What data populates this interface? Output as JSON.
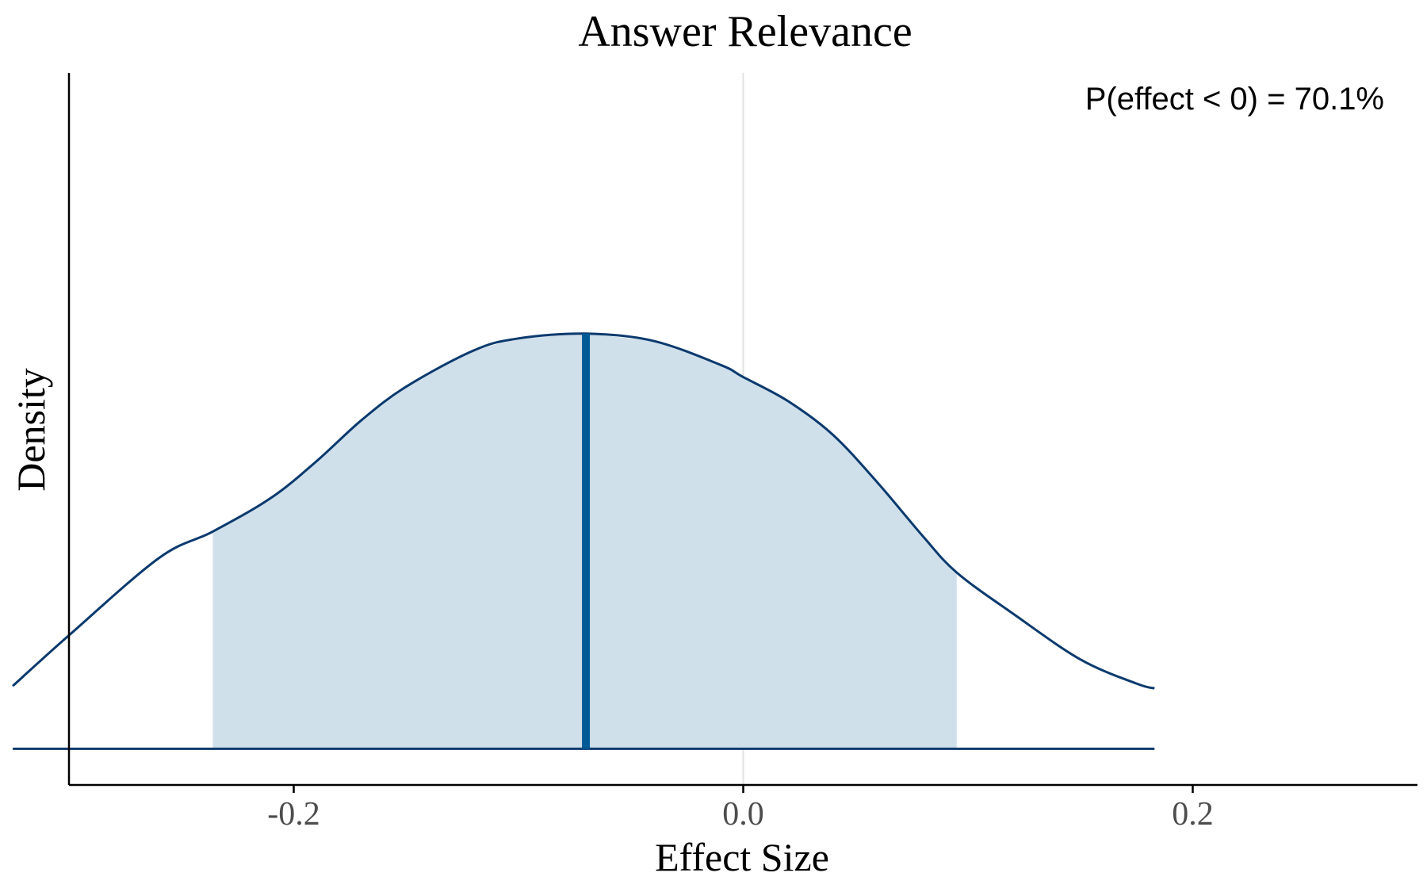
{
  "chart_data": {
    "type": "area",
    "title": "Answer Relevance",
    "xlabel": "Effect Size",
    "ylabel": "Density",
    "annotation": "P(effect < 0) = 70.1%",
    "xlim": [
      -0.3,
      0.3
    ],
    "ylim": [
      -0.15,
      2.8
    ],
    "grid": "vertical line at x = 0",
    "legend": "none",
    "x_ticks": [
      -0.2,
      0.0,
      0.2
    ],
    "x_tick_labels": [
      "-0.2",
      "0.0",
      "0.2"
    ],
    "median": -0.07,
    "interval": [
      -0.236,
      0.095
    ],
    "density": {
      "x": [
        -0.325,
        -0.3,
        -0.26,
        -0.236,
        -0.21,
        -0.19,
        -0.17,
        -0.15,
        -0.12,
        -0.1,
        -0.07,
        -0.04,
        -0.01,
        0.0,
        0.02,
        0.04,
        0.06,
        0.08,
        0.095,
        0.12,
        0.15,
        0.175,
        0.183
      ],
      "y": [
        0.26,
        0.47,
        0.79,
        0.9,
        1.04,
        1.19,
        1.36,
        1.5,
        1.65,
        1.7,
        1.72,
        1.69,
        1.59,
        1.54,
        1.44,
        1.3,
        1.1,
        0.88,
        0.73,
        0.56,
        0.37,
        0.27,
        0.25
      ]
    },
    "colors": {
      "line": "#0b3a6e",
      "fill": "#d0e0eb",
      "median_line": "#005a96",
      "zero_line": "#e2e2e2",
      "axis": "#000000",
      "tick_label": "#4d4d4d"
    }
  }
}
